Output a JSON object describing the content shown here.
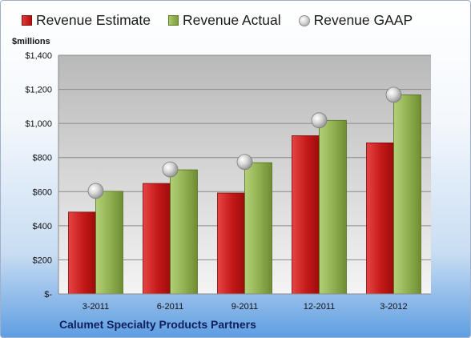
{
  "legend": {
    "estimate": "Revenue Estimate",
    "actual": "Revenue Actual",
    "gaap": "Revenue GAAP"
  },
  "units_label": "$millions",
  "company": "Calumet Specialty Products Partners",
  "colors": {
    "estimate": "#c81b1b",
    "actual": "#8fae4f",
    "gaap": "#bfbfbf"
  },
  "chart_data": {
    "type": "bar",
    "categories": [
      "3-2011",
      "6-2011",
      "9-2011",
      "12-2011",
      "3-2012"
    ],
    "series": [
      {
        "name": "Revenue Estimate",
        "values": [
          480,
          648,
          592,
          928,
          886
        ]
      },
      {
        "name": "Revenue Actual",
        "values": [
          602,
          728,
          770,
          1018,
          1168
        ]
      },
      {
        "name": "Revenue GAAP",
        "values": [
          604,
          730,
          774,
          1018,
          1168
        ]
      }
    ],
    "ylabel": "$millions",
    "ylim": [
      0,
      1400
    ],
    "yticks": [
      0,
      200,
      400,
      600,
      800,
      1000,
      1200,
      1400
    ],
    "ytick_labels": [
      "$-",
      "$200",
      "$400",
      "$600",
      "$800",
      "$1,000",
      "$1,200",
      "$1,400"
    ],
    "grid": true,
    "legend_position": "top"
  }
}
